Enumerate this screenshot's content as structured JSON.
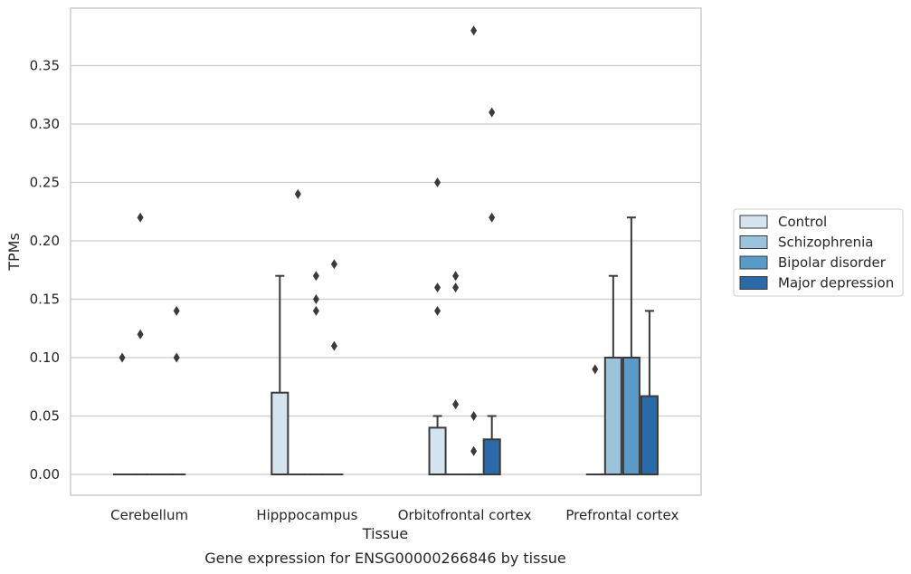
{
  "chart_data": {
    "type": "box",
    "title": "",
    "caption": "Gene expression for ENSG00000266846 by tissue",
    "xlabel": "Tissue",
    "ylabel": "TPMs",
    "ylim": [
      -0.018,
      0.395
    ],
    "yticks": [
      "0.00",
      "0.05",
      "0.10",
      "0.15",
      "0.20",
      "0.25",
      "0.30",
      "0.35"
    ],
    "grid": "horizontal",
    "legend_position": "right",
    "categories": [
      "Cerebellum",
      "Hipppocampus",
      "Orbitofrontal cortex",
      "Prefrontal cortex"
    ],
    "series": [
      {
        "name": "Control",
        "color": "#d6e3f0",
        "boxes": [
          {
            "q1": 0,
            "median": 0,
            "q3": 0,
            "whisker_low": 0,
            "whisker_high": 0,
            "outliers": [
              0.1
            ]
          },
          {
            "q1": 0,
            "median": 0,
            "q3": 0.07,
            "whisker_low": 0,
            "whisker_high": 0.17,
            "outliers": []
          },
          {
            "q1": 0,
            "median": 0,
            "q3": 0.04,
            "whisker_low": 0,
            "whisker_high": 0.05,
            "outliers": [
              0.14,
              0.16,
              0.25
            ]
          },
          {
            "q1": 0,
            "median": 0,
            "q3": 0,
            "whisker_low": 0,
            "whisker_high": 0,
            "outliers": [
              0.09
            ]
          }
        ]
      },
      {
        "name": "Schizophrenia",
        "color": "#9ac3dc",
        "boxes": [
          {
            "q1": 0,
            "median": 0,
            "q3": 0,
            "whisker_low": 0,
            "whisker_high": 0,
            "outliers": [
              0.22,
              0.12
            ]
          },
          {
            "q1": 0,
            "median": 0,
            "q3": 0,
            "whisker_low": 0,
            "whisker_high": 0,
            "outliers": [
              0.24
            ]
          },
          {
            "q1": 0,
            "median": 0,
            "q3": 0,
            "whisker_low": 0,
            "whisker_high": 0,
            "outliers": [
              0.06,
              0.16,
              0.17
            ]
          },
          {
            "q1": 0,
            "median": 0,
            "q3": 0.1,
            "whisker_low": 0,
            "whisker_high": 0.17,
            "outliers": []
          }
        ]
      },
      {
        "name": "Bipolar disorder",
        "color": "#5a9ac7",
        "boxes": [
          {
            "q1": 0,
            "median": 0,
            "q3": 0,
            "whisker_low": 0,
            "whisker_high": 0,
            "outliers": []
          },
          {
            "q1": 0,
            "median": 0,
            "q3": 0,
            "whisker_low": 0,
            "whisker_high": 0,
            "outliers": [
              0.14,
              0.15,
              0.17
            ]
          },
          {
            "q1": 0,
            "median": 0,
            "q3": 0,
            "whisker_low": 0,
            "whisker_high": 0,
            "outliers": [
              0.02,
              0.05,
              0.38
            ]
          },
          {
            "q1": 0,
            "median": 0,
            "q3": 0.1,
            "whisker_low": 0,
            "whisker_high": 0.22,
            "outliers": []
          }
        ]
      },
      {
        "name": "Major depression",
        "color": "#2b6aa6",
        "boxes": [
          {
            "q1": 0,
            "median": 0,
            "q3": 0,
            "whisker_low": 0,
            "whisker_high": 0,
            "outliers": [
              0.14,
              0.1
            ]
          },
          {
            "q1": 0,
            "median": 0,
            "q3": 0,
            "whisker_low": 0,
            "whisker_high": 0,
            "outliers": [
              0.18,
              0.11
            ]
          },
          {
            "q1": 0,
            "median": 0,
            "q3": 0.03,
            "whisker_low": 0,
            "whisker_high": 0.05,
            "outliers": [
              0.22,
              0.31
            ]
          },
          {
            "q1": 0,
            "median": 0,
            "q3": 0.067,
            "whisker_low": 0,
            "whisker_high": 0.14,
            "outliers": []
          }
        ]
      }
    ]
  }
}
